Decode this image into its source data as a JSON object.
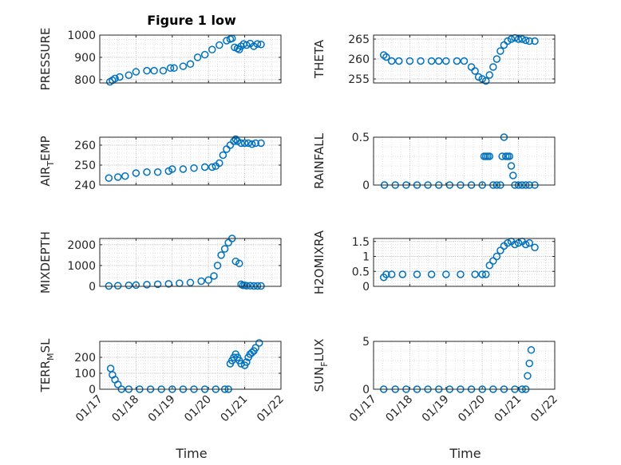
{
  "chart_data": {
    "title": "Figure 1 low",
    "xlabel": "Time",
    "type": "scatter",
    "marker": "open-circle",
    "marker_color": "#0072BD",
    "grid": "major+minor dotted",
    "xlim": [
      "01/17",
      "01/22"
    ],
    "xticks": [
      "01/17",
      "01/18",
      "01/19",
      "01/20",
      "01/21",
      "01/22"
    ],
    "panels": [
      {
        "ylabel": "PRESSURE",
        "ylim": [
          785,
          1000
        ],
        "yticks": [
          800,
          900,
          1000
        ],
        "x": [
          17.28,
          17.35,
          17.42,
          17.55,
          17.8,
          18.0,
          18.3,
          18.5,
          18.75,
          18.95,
          19.05,
          19.3,
          19.5,
          19.7,
          19.9,
          20.1,
          20.3,
          20.5,
          20.6,
          20.65,
          20.72,
          20.8,
          20.85,
          20.9,
          20.97,
          21.05,
          21.15,
          21.25,
          21.35,
          21.45
        ],
        "y": [
          790,
          797,
          805,
          812,
          820,
          835,
          840,
          840,
          840,
          852,
          852,
          860,
          870,
          900,
          912,
          935,
          955,
          975,
          982,
          985,
          945,
          940,
          935,
          950,
          960,
          955,
          962,
          950,
          960,
          958
        ]
      },
      {
        "ylabel": "THETA",
        "ylim": [
          254,
          266
        ],
        "yticks": [
          255,
          260,
          265
        ],
        "x": [
          17.28,
          17.35,
          17.5,
          17.7,
          18.0,
          18.3,
          18.6,
          18.8,
          19.0,
          19.3,
          19.5,
          19.7,
          19.8,
          19.9,
          20.0,
          20.1,
          20.2,
          20.3,
          20.4,
          20.5,
          20.6,
          20.7,
          20.8,
          20.9,
          21.0,
          21.1,
          21.2,
          21.3,
          21.45
        ],
        "y": [
          261,
          260.5,
          259.5,
          259.5,
          259.5,
          259.5,
          259.5,
          259.5,
          259.5,
          259.5,
          259.5,
          258,
          257,
          255.5,
          255,
          254.5,
          256,
          258,
          260,
          262,
          263.5,
          264.5,
          265,
          265.3,
          265,
          265,
          264.7,
          264.5,
          264.5
        ]
      },
      {
        "ylabel": "AIR_TEMP",
        "ylim": [
          240,
          264
        ],
        "yticks": [
          240,
          250,
          260
        ],
        "x": [
          17.25,
          17.5,
          17.7,
          18.0,
          18.3,
          18.6,
          18.9,
          19.0,
          19.3,
          19.6,
          19.9,
          20.1,
          20.2,
          20.3,
          20.4,
          20.5,
          20.6,
          20.7,
          20.75,
          20.8,
          20.9,
          21.0,
          21.1,
          21.2,
          21.3,
          21.45
        ],
        "y": [
          243.5,
          244,
          244.5,
          246,
          246.5,
          246.5,
          247,
          248,
          248,
          248.5,
          249,
          249,
          249.5,
          251,
          255,
          258,
          260,
          262,
          263,
          262,
          261,
          261,
          261,
          260.5,
          261,
          261
        ]
      },
      {
        "ylabel": "RAINFALL",
        "ylim": [
          0,
          0.5
        ],
        "yticks": [
          0,
          0.5
        ],
        "x": [
          17.3,
          17.6,
          17.9,
          18.2,
          18.5,
          18.8,
          19.1,
          19.4,
          19.7,
          20.0,
          20.05,
          20.1,
          20.15,
          20.2,
          20.3,
          20.4,
          20.5,
          20.55,
          20.6,
          20.65,
          20.7,
          20.75,
          20.8,
          20.85,
          20.9,
          21.0,
          21.1,
          21.2,
          21.3,
          21.45
        ],
        "y": [
          0,
          0,
          0,
          0,
          0,
          0,
          0,
          0,
          0,
          0,
          0.3,
          0.3,
          0.3,
          0.3,
          0,
          0,
          0,
          0.3,
          0.5,
          0.3,
          0.3,
          0.3,
          0.2,
          0.1,
          0,
          0,
          0,
          0,
          0,
          0
        ]
      },
      {
        "ylabel": "MIXDEPTH",
        "ylim": [
          0,
          2300
        ],
        "yticks": [
          0,
          1000,
          2000
        ],
        "x": [
          17.25,
          17.5,
          17.8,
          18.0,
          18.3,
          18.6,
          18.9,
          19.2,
          19.5,
          19.8,
          20.0,
          20.15,
          20.25,
          20.35,
          20.45,
          20.55,
          20.65,
          20.75,
          20.85,
          20.9,
          20.95,
          21.0,
          21.05,
          21.15,
          21.25,
          21.35,
          21.45
        ],
        "y": [
          20,
          30,
          50,
          60,
          80,
          100,
          120,
          150,
          180,
          250,
          300,
          500,
          1000,
          1500,
          1800,
          2100,
          2300,
          1200,
          1100,
          100,
          50,
          50,
          30,
          30,
          20,
          20,
          20
        ]
      },
      {
        "ylabel": "H2OMIXRA",
        "ylim": [
          0,
          1.6
        ],
        "yticks": [
          0,
          0.5,
          1,
          1.5
        ],
        "x": [
          17.28,
          17.35,
          17.5,
          17.8,
          18.2,
          18.6,
          19.0,
          19.4,
          19.8,
          20.0,
          20.1,
          20.2,
          20.3,
          20.4,
          20.5,
          20.6,
          20.7,
          20.8,
          20.9,
          21.0,
          21.1,
          21.2,
          21.3,
          21.45
        ],
        "y": [
          0.3,
          0.4,
          0.4,
          0.4,
          0.4,
          0.4,
          0.4,
          0.4,
          0.4,
          0.4,
          0.4,
          0.7,
          0.85,
          1.0,
          1.2,
          1.35,
          1.45,
          1.5,
          1.4,
          1.45,
          1.5,
          1.4,
          1.45,
          1.3
        ]
      },
      {
        "ylabel": "TERR_MSL",
        "ylim": [
          0,
          300
        ],
        "yticks": [
          0,
          100,
          200
        ],
        "x": [
          17.3,
          17.35,
          17.42,
          17.5,
          17.6,
          17.8,
          18.1,
          18.4,
          18.7,
          19.0,
          19.3,
          19.6,
          19.9,
          20.2,
          20.45,
          20.55,
          20.6,
          20.65,
          20.7,
          20.75,
          20.8,
          20.85,
          20.9,
          21.0,
          21.05,
          21.1,
          21.15,
          21.2,
          21.25,
          21.3,
          21.4
        ],
        "y": [
          130,
          90,
          60,
          30,
          0,
          0,
          0,
          0,
          0,
          0,
          0,
          0,
          0,
          0,
          0,
          0,
          160,
          180,
          200,
          220,
          200,
          180,
          160,
          150,
          170,
          200,
          220,
          230,
          240,
          260,
          290
        ]
      },
      {
        "ylabel": "SUN_FLUX",
        "ylim": [
          0,
          5
        ],
        "yticks": [
          0,
          5
        ],
        "x": [
          17.28,
          17.6,
          17.9,
          18.2,
          18.5,
          18.8,
          19.1,
          19.4,
          19.7,
          20.0,
          20.3,
          20.6,
          20.9,
          21.1,
          21.2,
          21.25,
          21.3,
          21.35
        ],
        "y": [
          0,
          0,
          0,
          0,
          0,
          0,
          0,
          0,
          0,
          0,
          0,
          0,
          0,
          0,
          0,
          1.4,
          2.7,
          4.1
        ]
      }
    ]
  }
}
